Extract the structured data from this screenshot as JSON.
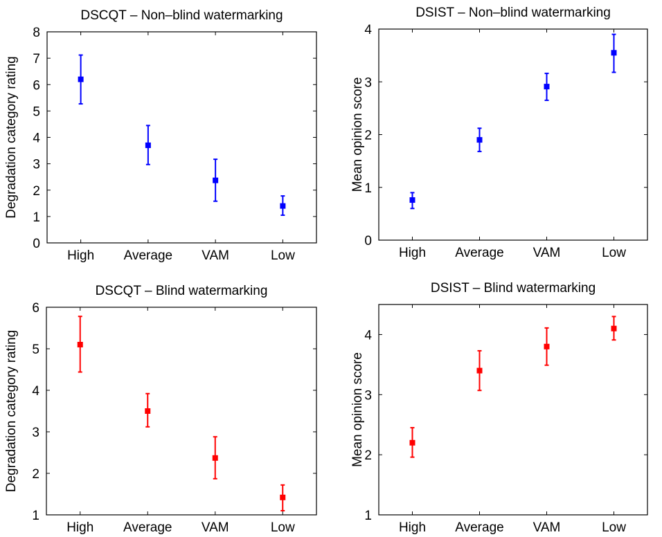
{
  "chart_data": [
    {
      "type": "scatter",
      "title": "DSCQT – Non–blind watermarking",
      "xlabel": "",
      "ylabel": "Degradation category rating",
      "categories": [
        "High",
        "Average",
        "VAM",
        "Low"
      ],
      "ylim": [
        0,
        8
      ],
      "yticks": [
        "0",
        "1",
        "2",
        "3",
        "4",
        "5",
        "6",
        "7",
        "8"
      ],
      "color": "#0000ff",
      "series": [
        {
          "values": [
            6.2,
            3.7,
            2.37,
            1.4
          ],
          "lower": [
            5.27,
            2.97,
            1.58,
            1.05
          ],
          "upper": [
            7.12,
            4.45,
            3.17,
            1.78
          ]
        }
      ]
    },
    {
      "type": "scatter",
      "title": "DSIST – Non–blind watermarking",
      "xlabel": "",
      "ylabel": "Mean opinion  score",
      "categories": [
        "High",
        "Average",
        "VAM",
        "Low"
      ],
      "ylim": [
        0,
        4
      ],
      "yticks": [
        "0",
        "1",
        "2",
        "3",
        "4"
      ],
      "color": "#0000ff",
      "series": [
        {
          "values": [
            0.76,
            1.9,
            2.91,
            3.55
          ],
          "lower": [
            0.6,
            1.68,
            2.65,
            3.18
          ],
          "upper": [
            0.9,
            2.12,
            3.16,
            3.9
          ]
        }
      ]
    },
    {
      "type": "scatter",
      "title": "DSCQT – Blind watermarking",
      "xlabel": "",
      "ylabel": "Degradation category rating",
      "categories": [
        "High",
        "Average",
        "VAM",
        "Low"
      ],
      "ylim": [
        1,
        6
      ],
      "yticks": [
        "1",
        "2",
        "3",
        "4",
        "5",
        "6"
      ],
      "color": "#ff0000",
      "series": [
        {
          "values": [
            5.1,
            3.5,
            2.37,
            1.42
          ],
          "lower": [
            4.44,
            3.12,
            1.87,
            1.1
          ],
          "upper": [
            5.78,
            3.92,
            2.88,
            1.72
          ]
        }
      ]
    },
    {
      "type": "scatter",
      "title": "DSIST – Blind watermarking",
      "xlabel": "",
      "ylabel": "Mean opinion score",
      "categories": [
        "High",
        "Average",
        "VAM",
        "Low"
      ],
      "ylim": [
        1,
        4.5
      ],
      "yticks": [
        "1",
        "2",
        "3",
        "4"
      ],
      "color": "#ff0000",
      "series": [
        {
          "values": [
            2.2,
            3.4,
            3.8,
            4.1
          ],
          "lower": [
            1.96,
            3.07,
            3.49,
            3.91
          ],
          "upper": [
            2.45,
            3.73,
            4.11,
            4.3
          ]
        }
      ]
    }
  ]
}
